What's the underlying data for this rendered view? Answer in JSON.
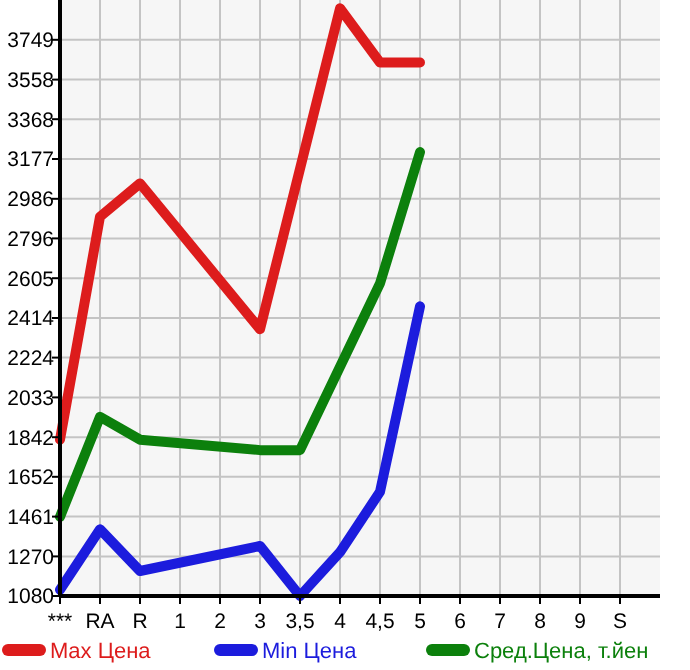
{
  "chart_data": {
    "type": "line",
    "categories": [
      "***",
      "RA",
      "R",
      "1",
      "2",
      "3",
      "3,5",
      "4",
      "4,5",
      "5",
      "6",
      "7",
      "8",
      "9",
      "S"
    ],
    "series": [
      {
        "name": "Max Цена",
        "color": "#dd1c1c",
        "values": [
          1830,
          2900,
          3060,
          null,
          null,
          2360,
          null,
          3900,
          3640,
          3640,
          null,
          null,
          null,
          null,
          null
        ]
      },
      {
        "name": "Min Цена",
        "color": "#1c1cdd",
        "values": [
          1110,
          1400,
          1200,
          null,
          null,
          1320,
          1080,
          1290,
          1580,
          2470,
          null,
          null,
          null,
          null,
          null
        ]
      },
      {
        "name": "Сред.Цена, т.йен",
        "color": "#0c800c",
        "values": [
          1460,
          1940,
          1830,
          null,
          null,
          1780,
          1780,
          null,
          2580,
          3210,
          null,
          null,
          null,
          null,
          null
        ]
      }
    ],
    "ylim": [
      1080,
      3940
    ],
    "yticks": [
      1080,
      1270,
      1461,
      1652,
      1842,
      2033,
      2224,
      2414,
      2605,
      2796,
      2986,
      3177,
      3368,
      3558,
      3749
    ],
    "grid": true,
    "legend": "bottom",
    "marker": "none",
    "line_style": "solid"
  }
}
